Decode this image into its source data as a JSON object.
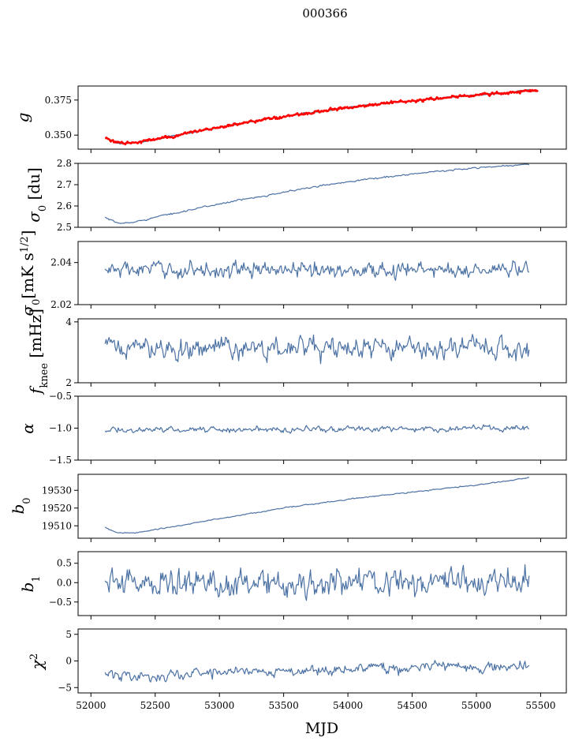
{
  "chart_data": {
    "type": "line",
    "title": "000366",
    "xlabel": "MJD",
    "xlim": [
      51900,
      55700
    ],
    "xticks": [
      "52000",
      "52500",
      "53000",
      "53500",
      "54000",
      "54500",
      "55000",
      "55500"
    ],
    "x_start": 52110,
    "x_end": 55410,
    "colors": {
      "series": "#4c72a4",
      "overlay": "#ff0000"
    },
    "panels": [
      {
        "id": "g",
        "ylabel": "g",
        "ylim": [
          0.34,
          0.385
        ],
        "yticks": [
          {
            "value": 0.35,
            "label": "0.350"
          },
          {
            "value": 0.375,
            "label": "0.375"
          }
        ],
        "knots_x": [
          52110,
          52200,
          52300,
          52500,
          52800,
          53200,
          53700,
          54200,
          54800,
          55200,
          55410
        ],
        "knots_y": [
          0.348,
          0.3445,
          0.344,
          0.347,
          0.352,
          0.359,
          0.366,
          0.372,
          0.377,
          0.38,
          0.382
        ],
        "noise": 0.0004,
        "overlay": {
          "name": "red",
          "knots_x": [
            52110,
            52200,
            52300,
            52500,
            52800,
            53200,
            53700,
            54200,
            54800,
            55200,
            55480
          ],
          "knots_y": [
            0.348,
            0.3445,
            0.344,
            0.347,
            0.352,
            0.359,
            0.366,
            0.372,
            0.377,
            0.38,
            0.382
          ],
          "noise": 0.0008
        }
      },
      {
        "id": "sigma0-du",
        "ylabel": "σ0 [du]",
        "ylim": [
          2.5,
          2.8
        ],
        "yticks": [
          {
            "value": 2.5,
            "label": "2.5"
          },
          {
            "value": 2.6,
            "label": "2.6"
          },
          {
            "value": 2.7,
            "label": "2.7"
          },
          {
            "value": 2.8,
            "label": "2.8"
          }
        ],
        "knots_x": [
          52110,
          52200,
          52300,
          52600,
          53000,
          53500,
          54000,
          54500,
          55000,
          55410
        ],
        "knots_y": [
          2.545,
          2.52,
          2.52,
          2.56,
          2.61,
          2.665,
          2.715,
          2.75,
          2.78,
          2.795
        ],
        "noise": 0.003
      },
      {
        "id": "sigma0-mk",
        "ylabel": "σ0 [mK s^1/2]",
        "ylim": [
          2.02,
          2.05
        ],
        "yticks": [
          {
            "value": 2.02,
            "label": "2.02"
          },
          {
            "value": 2.04,
            "label": "2.04"
          }
        ],
        "knots_x": [
          52110,
          55410
        ],
        "knots_y": [
          2.0365,
          2.0365
        ],
        "noise": 0.003
      },
      {
        "id": "fknee",
        "ylabel": "f_knee [mHz]",
        "ylim": [
          2.0,
          4.1
        ],
        "yticks": [
          {
            "value": 2,
            "label": "2"
          },
          {
            "value": 4,
            "label": "4"
          }
        ],
        "knots_x": [
          52110,
          55410
        ],
        "knots_y": [
          3.15,
          3.1
        ],
        "noise": 0.28
      },
      {
        "id": "alpha",
        "ylabel": "α",
        "ylim": [
          -1.5,
          -0.5
        ],
        "yticks": [
          {
            "value": -1.5,
            "label": "−1.5"
          },
          {
            "value": -1.0,
            "label": "−1.0"
          },
          {
            "value": -0.5,
            "label": "−0.5"
          }
        ],
        "knots_x": [
          52110,
          55410
        ],
        "knots_y": [
          -1.03,
          -1.0
        ],
        "noise": 0.035
      },
      {
        "id": "b0",
        "ylabel": "b0",
        "ylim": [
          19503,
          19539
        ],
        "yticks": [
          {
            "value": 19510,
            "label": "19510"
          },
          {
            "value": 19520,
            "label": "19520"
          },
          {
            "value": 19530,
            "label": "19530"
          }
        ],
        "knots_x": [
          52110,
          52200,
          52350,
          52600,
          53000,
          53500,
          54000,
          54500,
          55000,
          55410
        ],
        "knots_y": [
          19509,
          19506,
          19506,
          19509,
          19514,
          19520,
          19525,
          19529,
          19533,
          19537
        ],
        "noise": 0.25
      },
      {
        "id": "b1",
        "ylabel": "b1",
        "ylim": [
          -0.85,
          0.8
        ],
        "yticks": [
          {
            "value": -0.5,
            "label": "−0.5"
          },
          {
            "value": 0.0,
            "label": "0.0"
          },
          {
            "value": 0.5,
            "label": "0.5"
          }
        ],
        "knots_x": [
          52110,
          55410
        ],
        "knots_y": [
          0.0,
          0.0
        ],
        "noise": 0.28
      },
      {
        "id": "chi2",
        "ylabel": "χ^2",
        "ylim": [
          -6,
          6
        ],
        "yticks": [
          {
            "value": -5,
            "label": "−5"
          },
          {
            "value": 0,
            "label": "0"
          },
          {
            "value": 5,
            "label": "5"
          }
        ],
        "knots_x": [
          52110,
          52500,
          53000,
          53500,
          54000,
          54500,
          55000,
          55410
        ],
        "knots_y": [
          -2.5,
          -3.0,
          -2.0,
          -1.8,
          -1.5,
          -1.2,
          -1.0,
          -1.0
        ],
        "noise": 0.8
      }
    ]
  }
}
